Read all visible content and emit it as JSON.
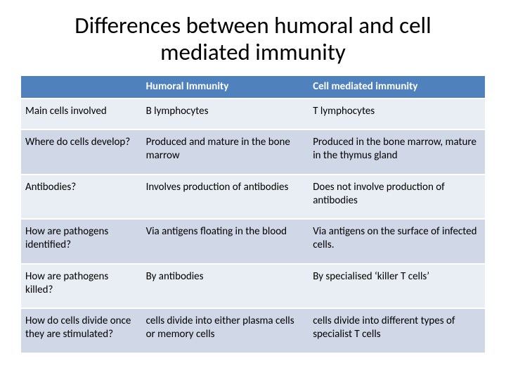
{
  "title": "Differences between humoral and cell mediated immunity",
  "colors": {
    "header_bg": "#4f81bd",
    "header_text": "#ffffff",
    "row_odd_bg": "#e9edf4",
    "row_even_bg": "#d0d8e8",
    "text": "#000000",
    "background": "#ffffff"
  },
  "table": {
    "columns": [
      "",
      "Humoral Immunity",
      "Cell mediated immunity"
    ],
    "column_widths_pct": [
      26,
      36,
      38
    ],
    "header_fontsize": 15,
    "cell_fontsize": 15,
    "rows": [
      {
        "label": "Main cells involved",
        "humoral": "B lymphocytes",
        "cell_mediated": "T lymphocytes"
      },
      {
        "label": "Where do cells develop?",
        "humoral": "Produced and mature in the bone marrow",
        "cell_mediated": "Produced in the bone marrow, mature in the thymus gland"
      },
      {
        "label": "Antibodies?",
        "humoral": "Involves production of antibodies",
        "cell_mediated": "Does not involve production of antibodies"
      },
      {
        "label": "How are pathogens identified?",
        "humoral": "Via antigens floating in the blood",
        "cell_mediated": "Via antigens on the surface of infected cells."
      },
      {
        "label": "How are pathogens killed?",
        "humoral": "By antibodies",
        "cell_mediated": "By specialised ‘killer T cells’"
      },
      {
        "label": "How do cells divide once they are stimulated?",
        "humoral": "cells divide into either plasma cells or memory cells",
        "cell_mediated": "cells divide into different types of specialist T cells"
      }
    ]
  }
}
